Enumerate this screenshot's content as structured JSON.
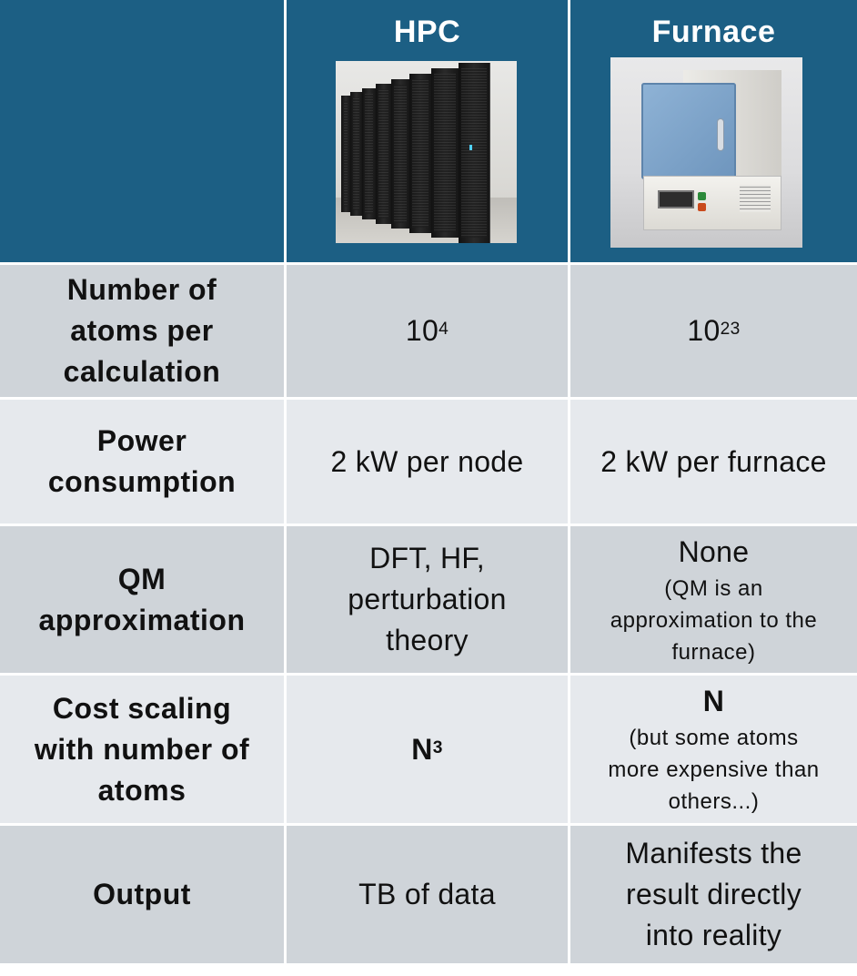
{
  "header": {
    "hpc_title": "HPC",
    "furnace_title": "Furnace"
  },
  "rows": [
    {
      "label_lines": [
        "Number of",
        "atoms per",
        "calculation"
      ],
      "hpc": {
        "base": "10",
        "exp": "4"
      },
      "furnace": {
        "base": "10",
        "exp": "23"
      }
    },
    {
      "label_lines": [
        "Power",
        "consumption"
      ],
      "hpc": "2 kW per node",
      "furnace": "2 kW per furnace"
    },
    {
      "label_lines": [
        "QM",
        "approximation"
      ],
      "hpc_lines": [
        "DFT, HF,",
        "perturbation",
        "theory"
      ],
      "furnace_main": "None",
      "furnace_note_lines": [
        "(QM is an",
        "approximation to the",
        "furnace)"
      ]
    },
    {
      "label_lines": [
        "Cost scaling",
        "with number of",
        "atoms"
      ],
      "hpc": {
        "base": "N",
        "exp": "3"
      },
      "furnace_main": "N",
      "furnace_note_lines": [
        "(but some atoms",
        "more expensive than",
        "others...)"
      ]
    },
    {
      "label_lines": [
        "Output"
      ],
      "hpc": "TB of data",
      "furnace_lines": [
        "Manifests the",
        "result directly",
        "into reality"
      ]
    }
  ]
}
